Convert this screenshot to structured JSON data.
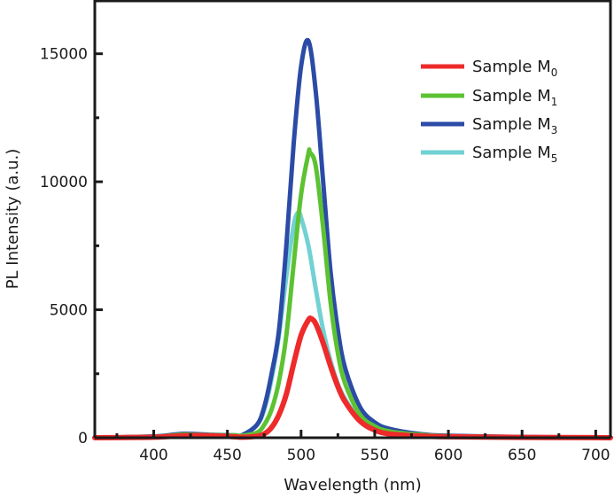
{
  "chart_data": {
    "type": "line",
    "title": "",
    "xlabel": "Wavelength (nm)",
    "ylabel": "PL Intensity (a.u.)",
    "xlim": [
      360,
      710
    ],
    "ylim": [
      0,
      17100
    ],
    "xticks": [
      400,
      450,
      500,
      550,
      600,
      650,
      700
    ],
    "yticks": [
      0,
      5000,
      10000,
      15000
    ],
    "grid": false,
    "legend_position": "top-right",
    "series": [
      {
        "name": "Sample M",
        "subscript": "0",
        "color": "#ee2a2a",
        "points": [
          [
            360,
            0
          ],
          [
            400,
            20
          ],
          [
            420,
            80
          ],
          [
            440,
            80
          ],
          [
            455,
            40
          ],
          [
            460,
            20
          ],
          [
            470,
            60
          ],
          [
            475,
            150
          ],
          [
            480,
            400
          ],
          [
            485,
            900
          ],
          [
            490,
            1700
          ],
          [
            495,
            2900
          ],
          [
            500,
            4000
          ],
          [
            505,
            4600
          ],
          [
            507,
            4650
          ],
          [
            510,
            4450
          ],
          [
            515,
            3700
          ],
          [
            520,
            2800
          ],
          [
            525,
            2000
          ],
          [
            530,
            1400
          ],
          [
            540,
            650
          ],
          [
            550,
            300
          ],
          [
            560,
            150
          ],
          [
            580,
            70
          ],
          [
            600,
            40
          ],
          [
            650,
            15
          ],
          [
            700,
            5
          ],
          [
            710,
            0
          ]
        ]
      },
      {
        "name": "Sample M",
        "subscript": "1",
        "color": "#5cc232",
        "points": [
          [
            360,
            0
          ],
          [
            400,
            40
          ],
          [
            420,
            120
          ],
          [
            440,
            100
          ],
          [
            455,
            90
          ],
          [
            460,
            80
          ],
          [
            470,
            200
          ],
          [
            475,
            500
          ],
          [
            480,
            1100
          ],
          [
            485,
            2200
          ],
          [
            490,
            4000
          ],
          [
            495,
            6800
          ],
          [
            500,
            9500
          ],
          [
            505,
            11100
          ],
          [
            506,
            11150
          ],
          [
            510,
            10600
          ],
          [
            515,
            8200
          ],
          [
            520,
            5300
          ],
          [
            525,
            3300
          ],
          [
            530,
            2100
          ],
          [
            540,
            900
          ],
          [
            550,
            450
          ],
          [
            560,
            250
          ],
          [
            580,
            120
          ],
          [
            600,
            60
          ],
          [
            650,
            20
          ],
          [
            700,
            10
          ],
          [
            710,
            5
          ]
        ]
      },
      {
        "name": "Sample M",
        "subscript": "3",
        "color": "#2b4ba6",
        "points": [
          [
            360,
            0
          ],
          [
            400,
            50
          ],
          [
            420,
            150
          ],
          [
            440,
            110
          ],
          [
            455,
            90
          ],
          [
            460,
            100
          ],
          [
            470,
            500
          ],
          [
            475,
            1200
          ],
          [
            480,
            2500
          ],
          [
            485,
            4200
          ],
          [
            490,
            7500
          ],
          [
            495,
            11500
          ],
          [
            500,
            14500
          ],
          [
            505,
            15500
          ],
          [
            510,
            13500
          ],
          [
            515,
            10000
          ],
          [
            520,
            6500
          ],
          [
            525,
            4200
          ],
          [
            530,
            2700
          ],
          [
            540,
            1200
          ],
          [
            550,
            600
          ],
          [
            560,
            350
          ],
          [
            580,
            150
          ],
          [
            600,
            80
          ],
          [
            650,
            30
          ],
          [
            700,
            10
          ],
          [
            710,
            5
          ]
        ]
      },
      {
        "name": "Sample M",
        "subscript": "5",
        "color": "#72d1d3",
        "points": [
          [
            360,
            0
          ],
          [
            400,
            50
          ],
          [
            420,
            150
          ],
          [
            440,
            120
          ],
          [
            455,
            100
          ],
          [
            460,
            100
          ],
          [
            470,
            500
          ],
          [
            475,
            1100
          ],
          [
            480,
            2300
          ],
          [
            485,
            4000
          ],
          [
            490,
            6300
          ],
          [
            495,
            8300
          ],
          [
            498,
            8800
          ],
          [
            500,
            8600
          ],
          [
            505,
            7500
          ],
          [
            510,
            5800
          ],
          [
            515,
            4200
          ],
          [
            520,
            3000
          ],
          [
            525,
            2100
          ],
          [
            530,
            1500
          ],
          [
            540,
            700
          ],
          [
            550,
            350
          ],
          [
            560,
            200
          ],
          [
            580,
            100
          ],
          [
            600,
            50
          ],
          [
            650,
            20
          ],
          [
            700,
            10
          ],
          [
            710,
            5
          ]
        ]
      }
    ]
  }
}
